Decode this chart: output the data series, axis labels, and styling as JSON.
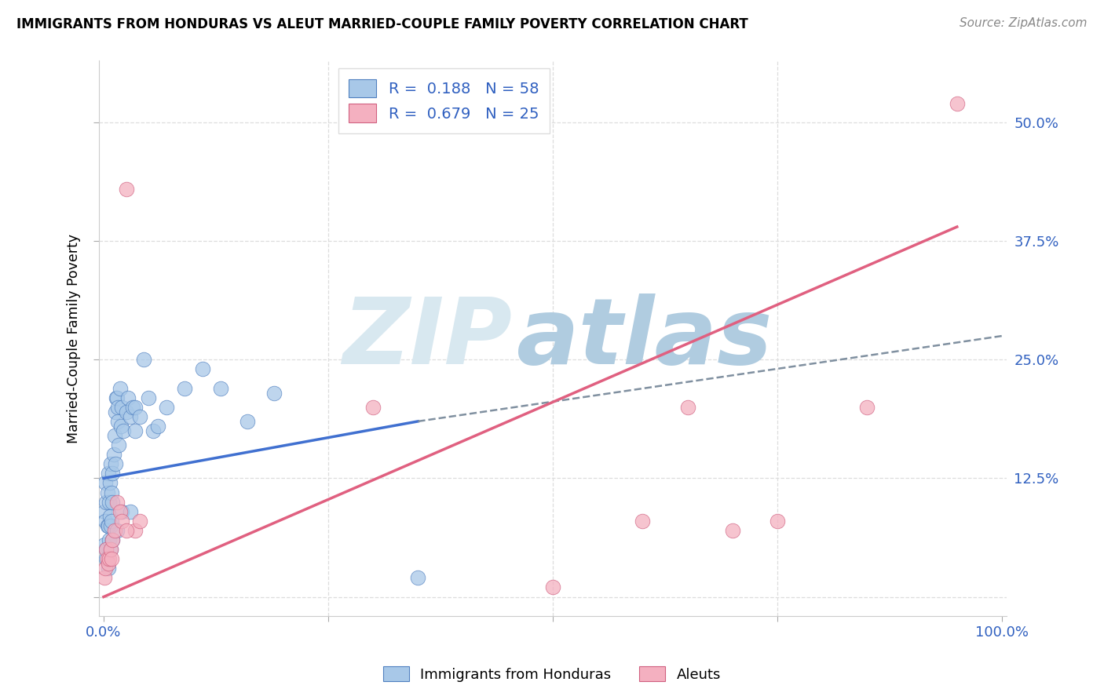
{
  "title": "IMMIGRANTS FROM HONDURAS VS ALEUT MARRIED-COUPLE FAMILY POVERTY CORRELATION CHART",
  "source_text": "Source: ZipAtlas.com",
  "ylabel": "Married-Couple Family Poverty",
  "xlim": [
    -0.005,
    1.005
  ],
  "ylim": [
    -0.02,
    0.565
  ],
  "blue_R": "0.188",
  "blue_N": "58",
  "pink_R": "0.679",
  "pink_N": "25",
  "blue_dot_color": "#a8c8e8",
  "blue_dot_edge": "#5080c0",
  "pink_dot_color": "#f4b0c0",
  "pink_dot_edge": "#d06080",
  "blue_line_color": "#4070d0",
  "pink_line_color": "#e06080",
  "dashed_line_color": "#8090a0",
  "watermark_ZIP_color": "#d8e8f0",
  "watermark_atlas_color": "#b0cce0",
  "legend_text_color": "#3060c0",
  "tick_color": "#3060c0",
  "grid_color": "#dddddd",
  "blue_dots_x": [
    0.001,
    0.001,
    0.002,
    0.002,
    0.003,
    0.003,
    0.004,
    0.004,
    0.005,
    0.005,
    0.006,
    0.006,
    0.007,
    0.007,
    0.008,
    0.008,
    0.009,
    0.009,
    0.01,
    0.01,
    0.011,
    0.012,
    0.013,
    0.013,
    0.014,
    0.015,
    0.016,
    0.016,
    0.017,
    0.018,
    0.019,
    0.02,
    0.022,
    0.025,
    0.027,
    0.03,
    0.032,
    0.035,
    0.035,
    0.04,
    0.045,
    0.05,
    0.055,
    0.06,
    0.07,
    0.09,
    0.11,
    0.13,
    0.16,
    0.19,
    0.003,
    0.005,
    0.008,
    0.01,
    0.015,
    0.02,
    0.03,
    0.35
  ],
  "blue_dots_y": [
    0.055,
    0.09,
    0.08,
    0.12,
    0.1,
    0.05,
    0.075,
    0.11,
    0.13,
    0.075,
    0.1,
    0.06,
    0.12,
    0.085,
    0.075,
    0.14,
    0.11,
    0.08,
    0.13,
    0.1,
    0.15,
    0.17,
    0.14,
    0.195,
    0.21,
    0.21,
    0.2,
    0.185,
    0.16,
    0.22,
    0.18,
    0.2,
    0.175,
    0.195,
    0.21,
    0.19,
    0.2,
    0.2,
    0.175,
    0.19,
    0.25,
    0.21,
    0.175,
    0.18,
    0.2,
    0.22,
    0.24,
    0.22,
    0.185,
    0.215,
    0.04,
    0.03,
    0.05,
    0.06,
    0.07,
    0.09,
    0.09,
    0.02
  ],
  "pink_dots_x": [
    0.001,
    0.002,
    0.003,
    0.004,
    0.005,
    0.006,
    0.008,
    0.009,
    0.01,
    0.012,
    0.015,
    0.018,
    0.02,
    0.025,
    0.035,
    0.04,
    0.5,
    0.6,
    0.65,
    0.7,
    0.75,
    0.85,
    0.95,
    0.025,
    0.3
  ],
  "pink_dots_y": [
    0.02,
    0.03,
    0.05,
    0.04,
    0.035,
    0.04,
    0.05,
    0.04,
    0.06,
    0.07,
    0.1,
    0.09,
    0.08,
    0.43,
    0.07,
    0.08,
    0.01,
    0.08,
    0.2,
    0.07,
    0.08,
    0.2,
    0.52,
    0.07,
    0.2
  ],
  "blue_solid_line_x0": 0.0,
  "blue_solid_line_y0": 0.125,
  "blue_solid_line_x1": 0.35,
  "blue_solid_line_y1": 0.185,
  "blue_dashed_line_x0": 0.35,
  "blue_dashed_line_y0": 0.185,
  "blue_dashed_line_x1": 1.0,
  "blue_dashed_line_y1": 0.275,
  "pink_line_x0": 0.0,
  "pink_line_y0": 0.0,
  "pink_line_x1": 0.95,
  "pink_line_y1": 0.39,
  "ytick_positions": [
    0.0,
    0.125,
    0.25,
    0.375,
    0.5
  ],
  "ytick_labels_right": [
    "",
    "12.5%",
    "25.0%",
    "37.5%",
    "50.0%"
  ],
  "xtick_positions": [
    0.0,
    0.25,
    0.5,
    0.75,
    1.0
  ],
  "xtick_labels": [
    "0.0%",
    "",
    "",
    "",
    "100.0%"
  ]
}
